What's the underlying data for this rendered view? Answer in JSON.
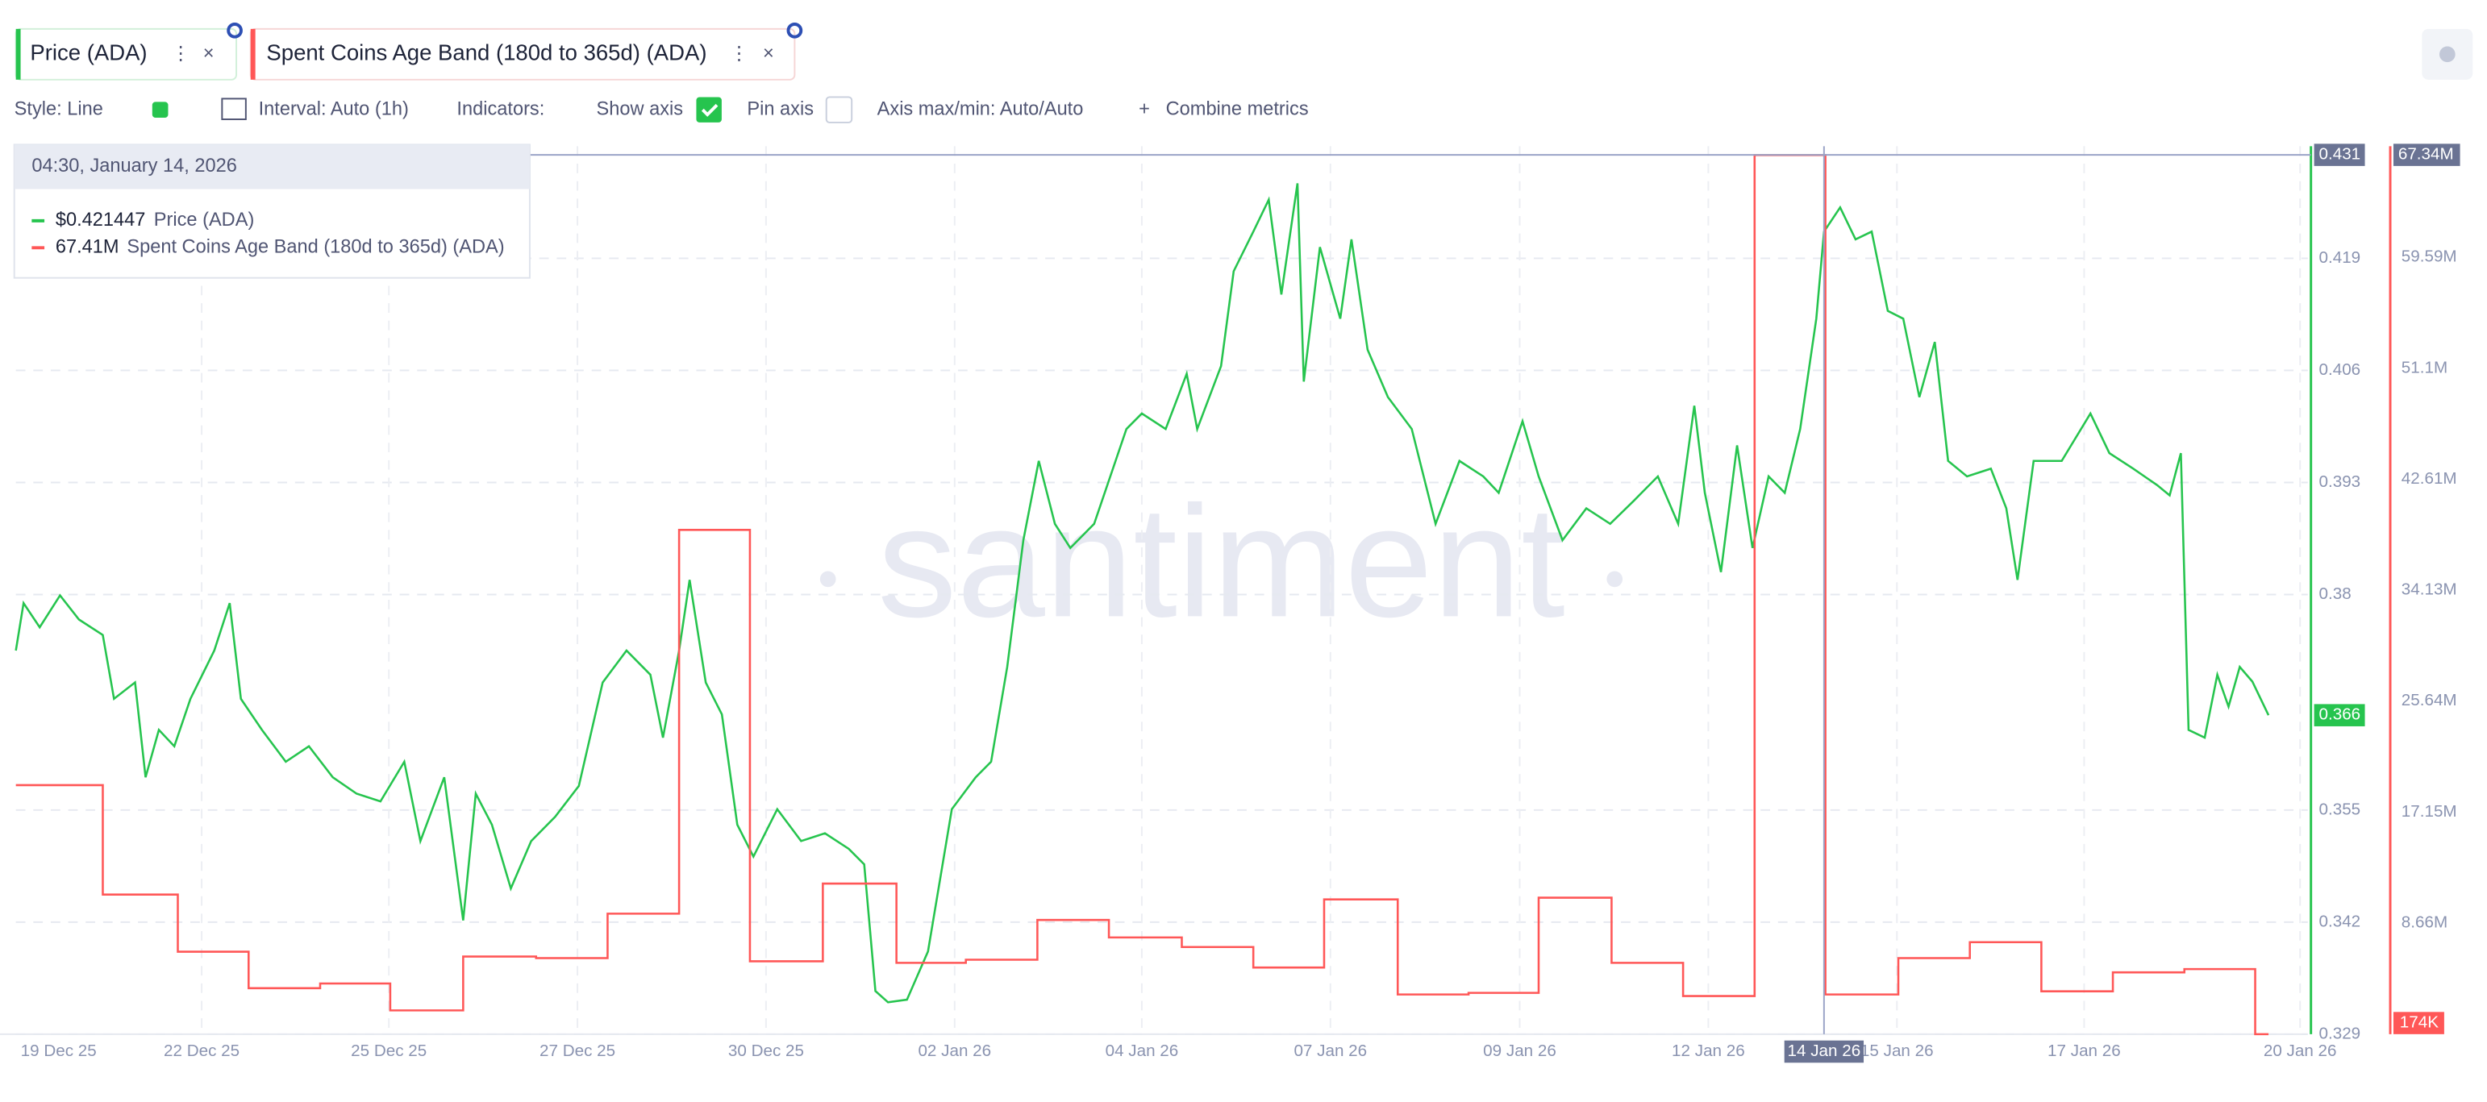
{
  "toolbar": {
    "tabs": [
      "Price (ADA)",
      "Spent Coins Age Band (180d to 365d) (ADA)"
    ],
    "style": "Style: Line",
    "interval": "Interval: Auto (1h)",
    "indicators": "Indicators:",
    "show_axis": "Show axis",
    "pin_axis": "Pin axis",
    "axis_minmax": "Axis max/min: Auto/Auto",
    "combine": "Combine metrics"
  },
  "watermark": "santiment",
  "tooltip": {
    "title": "04:30, January 14, 2026",
    "value_labels": [
      "$0.421447",
      "67.41M"
    ]
  },
  "chart_data": {
    "type": "line",
    "xlim": [
      -0.61,
      32.08
    ],
    "xticks": [
      {
        "value": 0,
        "label": "19 Dec 25"
      },
      {
        "value": 2.04,
        "label": "22 Dec 25"
      },
      {
        "value": 4.71,
        "label": "25 Dec 25"
      },
      {
        "value": 7.4,
        "label": "27 Dec 25"
      },
      {
        "value": 10.09,
        "label": "30 Dec 25"
      },
      {
        "value": 12.78,
        "label": "02 Jan 26"
      },
      {
        "value": 15.45,
        "label": "04 Jan 26"
      },
      {
        "value": 18.14,
        "label": "07 Jan 26"
      },
      {
        "value": 20.84,
        "label": "09 Jan 26"
      },
      {
        "value": 23.53,
        "label": "12 Jan 26"
      },
      {
        "value": 26.22,
        "label": "15 Jan 26"
      },
      {
        "value": 28.89,
        "label": "17 Jan 26"
      },
      {
        "value": 31.97,
        "label": "20 Jan 26"
      }
    ],
    "ylim": [
      0.329,
      0.432
    ],
    "yticks": [
      0.329,
      0.342,
      0.355,
      0.38,
      0.393,
      0.406,
      0.419
    ],
    "y2lim": [
      174000,
      68080000
    ],
    "y2ticks": [
      {
        "value": 8660000,
        "label": "8.66M"
      },
      {
        "value": 17150000,
        "label": "17.15M"
      },
      {
        "value": 25640000,
        "label": "25.64M"
      },
      {
        "value": 34130000,
        "label": "34.13M"
      },
      {
        "value": 42610000,
        "label": "42.61M"
      },
      {
        "value": 51100000,
        "label": "51.1M"
      },
      {
        "value": 59590000,
        "label": "59.59M"
      }
    ],
    "grid": true,
    "crosshair": {
      "x": 25.18,
      "x_label": "14 Jan 26",
      "y": 0.431,
      "y2_label": "67.34M"
    },
    "series": [
      {
        "name": "Price (ADA)",
        "color": "#26c44e",
        "axis": "y",
        "x": [
          -0.61,
          -0.5,
          -0.27,
          0.02,
          0.29,
          0.63,
          0.79,
          1.09,
          1.24,
          1.43,
          1.65,
          1.88,
          2.22,
          2.44,
          2.6,
          2.9,
          3.24,
          3.57,
          3.91,
          4.25,
          4.59,
          4.93,
          5.16,
          5.5,
          5.77,
          5.95,
          6.18,
          6.45,
          6.74,
          7.08,
          7.42,
          7.76,
          8.1,
          8.44,
          8.62,
          8.85,
          9.0,
          9.23,
          9.46,
          9.68,
          9.91,
          10.25,
          10.59,
          10.93,
          11.27,
          11.49,
          11.65,
          11.83,
          12.1,
          12.4,
          12.74,
          13.08,
          13.3,
          13.53,
          13.76,
          13.98,
          14.21,
          14.43,
          14.77,
          15.0,
          15.23,
          15.45,
          15.79,
          16.09,
          16.24,
          16.58,
          16.76,
          17.04,
          17.26,
          17.44,
          17.67,
          17.76,
          17.99,
          18.28,
          18.44,
          18.67,
          18.96,
          19.3,
          19.64,
          19.98,
          20.32,
          20.54,
          20.88,
          21.11,
          21.45,
          21.79,
          22.13,
          22.47,
          22.81,
          23.1,
          23.33,
          23.48,
          23.71,
          23.94,
          24.16,
          24.39,
          24.62,
          24.84,
          25.07,
          25.18,
          25.41,
          25.63,
          25.86,
          26.09,
          26.31,
          26.54,
          26.76,
          26.95,
          27.22,
          27.56,
          27.78,
          27.94,
          28.17,
          28.57,
          28.98,
          29.25,
          29.59,
          29.93,
          30.11,
          30.27,
          30.38,
          30.61,
          30.79,
          30.95,
          31.11,
          31.29,
          31.52
        ],
        "values": [
          0.3735,
          0.379,
          0.3762,
          0.3799,
          0.3771,
          0.3753,
          0.3679,
          0.3698,
          0.3588,
          0.3643,
          0.3624,
          0.3679,
          0.3735,
          0.379,
          0.3679,
          0.3643,
          0.3606,
          0.3624,
          0.3588,
          0.3569,
          0.356,
          0.3606,
          0.3514,
          0.3588,
          0.3422,
          0.3569,
          0.3533,
          0.3459,
          0.3514,
          0.3542,
          0.3578,
          0.3698,
          0.3735,
          0.3707,
          0.3634,
          0.3735,
          0.3817,
          0.3698,
          0.3661,
          0.3533,
          0.3496,
          0.3551,
          0.3514,
          0.3523,
          0.3505,
          0.3487,
          0.334,
          0.3327,
          0.333,
          0.3386,
          0.3551,
          0.3588,
          0.3606,
          0.3716,
          0.3863,
          0.3955,
          0.3882,
          0.3854,
          0.3882,
          0.3937,
          0.3992,
          0.401,
          0.3992,
          0.4056,
          0.3992,
          0.4065,
          0.4175,
          0.4221,
          0.4258,
          0.4148,
          0.4277,
          0.4047,
          0.4203,
          0.412,
          0.4212,
          0.4084,
          0.4029,
          0.3992,
          0.3882,
          0.3955,
          0.3937,
          0.3918,
          0.4001,
          0.3937,
          0.3863,
          0.39,
          0.3882,
          0.3909,
          0.3937,
          0.3882,
          0.4019,
          0.3918,
          0.3826,
          0.3973,
          0.3854,
          0.3937,
          0.3918,
          0.3992,
          0.412,
          0.4221,
          0.4249,
          0.4212,
          0.4221,
          0.4129,
          0.412,
          0.4029,
          0.4093,
          0.3955,
          0.3937,
          0.3946,
          0.39,
          0.3817,
          0.3955,
          0.3955,
          0.401,
          0.3964,
          0.3946,
          0.3927,
          0.3915,
          0.3964,
          0.3643,
          0.3634,
          0.3707,
          0.367,
          0.3716,
          0.3699,
          0.366
        ]
      },
      {
        "name": "Spent Coins Age Band (180d to 365d) (ADA)",
        "color": "#ff5757",
        "axis": "y2",
        "step": "post",
        "last_value_label": "174K",
        "x": [
          -0.61,
          0.63,
          1.7,
          2.71,
          3.73,
          4.73,
          5.77,
          6.81,
          7.83,
          8.85,
          9.86,
          10.9,
          11.95,
          12.94,
          13.96,
          14.98,
          16.02,
          17.04,
          18.05,
          19.1,
          20.11,
          21.11,
          22.15,
          23.17,
          24.19,
          25.2,
          26.24,
          27.26,
          28.28,
          29.3,
          30.32,
          31.33,
          31.52
        ],
        "values": [
          19220000,
          10850000,
          6480000,
          3690000,
          4050000,
          1990000,
          6110000,
          5990000,
          9390000,
          38740000,
          5750000,
          11690000,
          5630000,
          5870000,
          8910000,
          7570000,
          6840000,
          5270000,
          10480000,
          3210000,
          3330000,
          10610000,
          5630000,
          3090000,
          67410000,
          3210000,
          5990000,
          7210000,
          3450000,
          4900000,
          5150000,
          174000,
          174000
        ]
      }
    ]
  }
}
